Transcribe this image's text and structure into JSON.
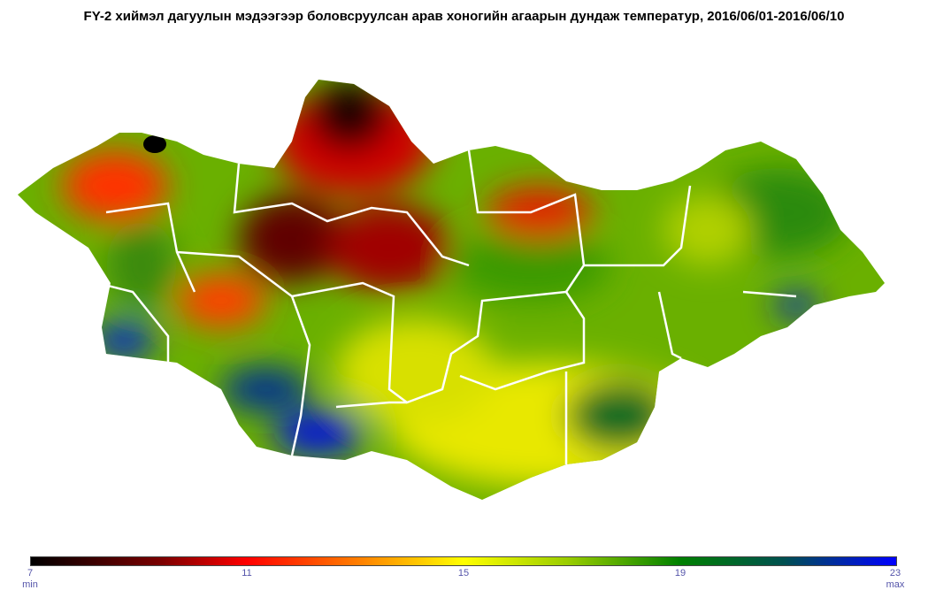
{
  "title": "FY-2 хиймэл дагуулын мэдээгээр боловсруулсан арав хоногийн агаарын дундаж температур, 2016/06/01-2016/06/10",
  "legend": {
    "ticks": [
      "7",
      "11",
      "15",
      "19",
      "23"
    ],
    "min_label": "min",
    "max_label": "max",
    "range": [
      7,
      23
    ],
    "colors": [
      "#000000",
      "#7a0000",
      "#ff0000",
      "#ff8000",
      "#ffff00",
      "#9acd00",
      "#008000",
      "#005050",
      "#0000ff"
    ]
  }
}
